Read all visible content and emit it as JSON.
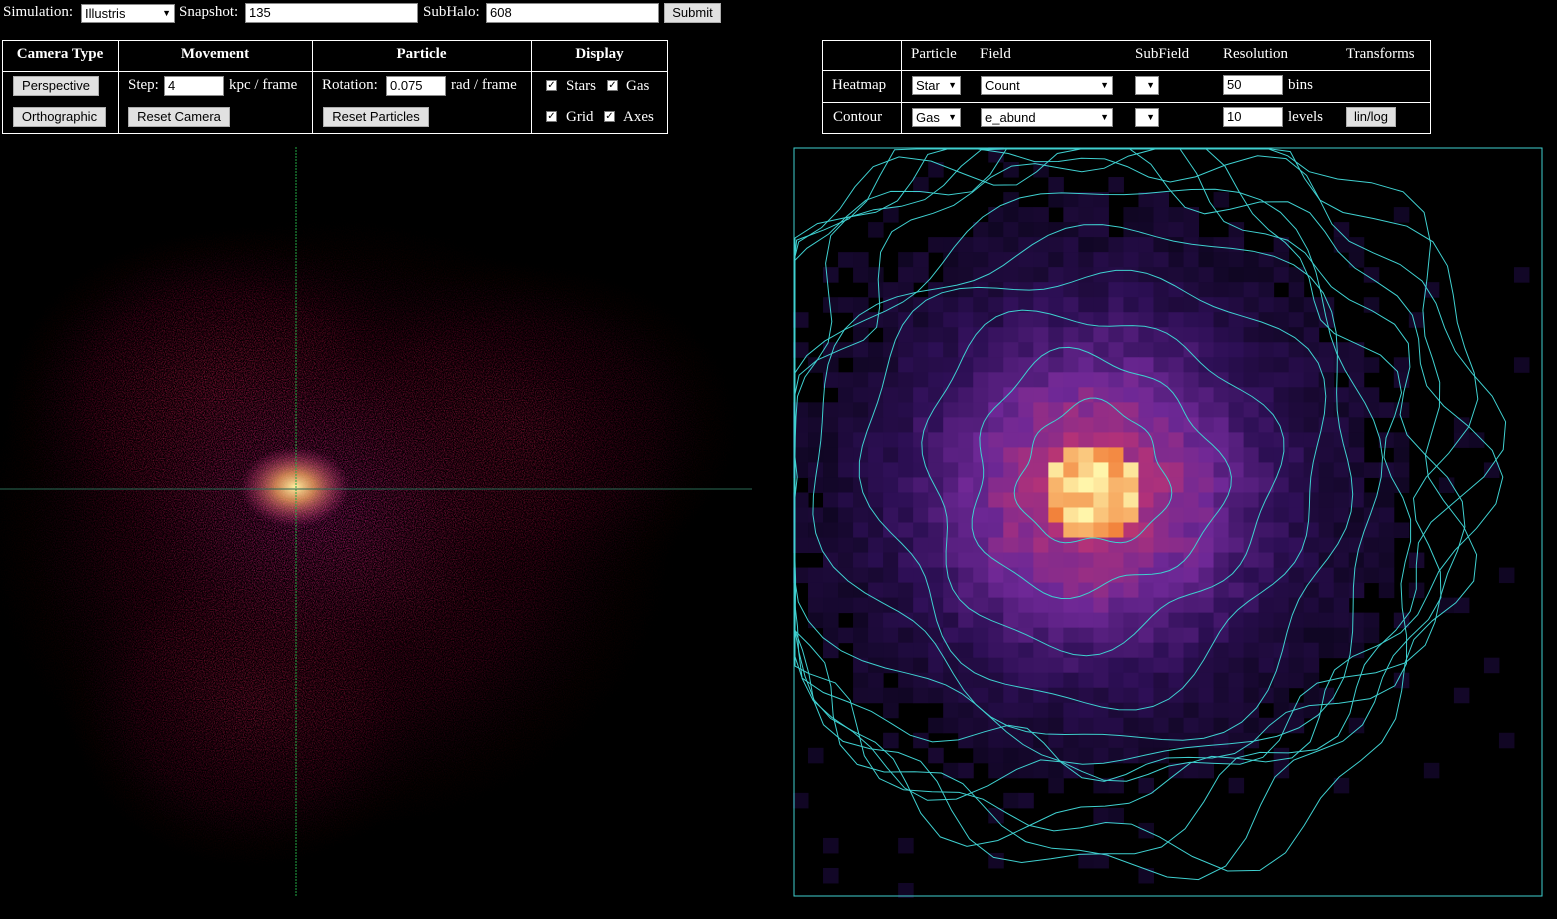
{
  "topbar": {
    "simulation_label": "Simulation:",
    "simulation_value": "Illustris",
    "snapshot_label": "Snapshot:",
    "snapshot_value": "135",
    "subhalo_label": "SubHalo:",
    "subhalo_value": "608",
    "submit_label": "Submit"
  },
  "controls": {
    "camera_header": "Camera Type",
    "perspective_label": "Perspective",
    "orthographic_label": "Orthographic",
    "movement_header": "Movement",
    "step_label": "Step:",
    "step_value": "4",
    "step_unit": "kpc / frame",
    "reset_camera_label": "Reset Camera",
    "particle_header": "Particle",
    "rotation_label": "Rotation:",
    "rotation_value": "0.075",
    "rotation_unit": "rad / frame",
    "reset_particles_label": "Reset Particles",
    "display_header": "Display",
    "stars_label": "Stars",
    "gas_label": "Gas",
    "grid_label": "Grid",
    "axes_label": "Axes",
    "stars_checked": true,
    "gas_checked": true,
    "grid_checked": true,
    "axes_checked": true
  },
  "plot_controls": {
    "headers": {
      "particle": "Particle",
      "field": "Field",
      "subfield": "SubField",
      "resolution": "Resolution",
      "transforms": "Transforms"
    },
    "heatmap": {
      "row_label": "Heatmap",
      "particle": "Star",
      "field": "Count",
      "subfield": "",
      "resolution": "50",
      "unit": "bins"
    },
    "contour": {
      "row_label": "Contour",
      "particle": "Gas",
      "field": "e_abund",
      "subfield": "",
      "resolution": "10",
      "unit": "levels",
      "transform_button": "lin/log"
    }
  },
  "colors": {
    "background": "#000000",
    "contour": "#3fd0d0",
    "axis_green": "#22aa44",
    "heatmap_low": "#1a0a3a",
    "heatmap_mid": "#7b2f9c",
    "heatmap_high": "#f08a20",
    "heatmap_peak": "#fff8b0"
  },
  "icons": {
    "dropdown": "chevron-down-icon",
    "checkbox": "checkmark-icon"
  }
}
